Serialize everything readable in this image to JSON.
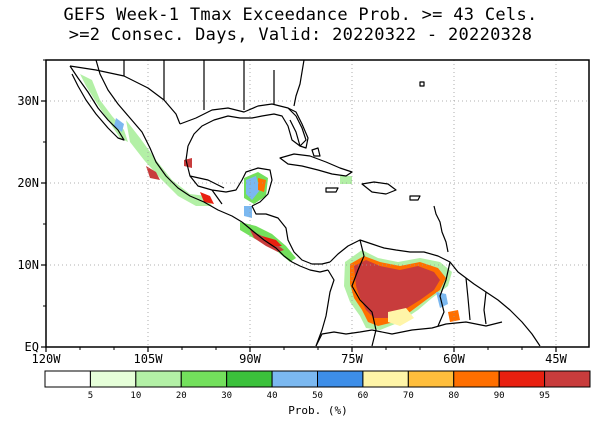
{
  "title_line1": "GEFS Week-1 Tmax Exceedance Prob. >= 43 Cels.",
  "title_line2": ">=2 Consec. Days, Valid: 20220322 - 20220328",
  "lon_labels": [
    "120W",
    "105W",
    "90W",
    "75W",
    "60W",
    "45W"
  ],
  "lat_labels": [
    "30N",
    "20N",
    "10N",
    "EQ"
  ],
  "colorbar": {
    "colors": [
      "#ffffff",
      "#e6ffd9",
      "#b3f0a6",
      "#73e05c",
      "#3bc13b",
      "#7bb8f0",
      "#3d8ee8",
      "#fff5a8",
      "#ffbe3c",
      "#ff6f00",
      "#e82010",
      "#c83c3c"
    ],
    "tick_labels": [
      "5",
      "10",
      "20",
      "30",
      "40",
      "50",
      "60",
      "70",
      "80",
      "90",
      "95"
    ],
    "unit_label": "Prob. (%)"
  },
  "map_colors": {
    "land_outline": "#000000",
    "grid": "#999999",
    "high_prob": "#c83c3c",
    "mid_prob": "#ff6f00",
    "low_prob": "#73e05c",
    "very_low_prob": "#b3f0a6",
    "blue_prob": "#7bb8f0",
    "yellow_prob": "#fff5a8"
  }
}
